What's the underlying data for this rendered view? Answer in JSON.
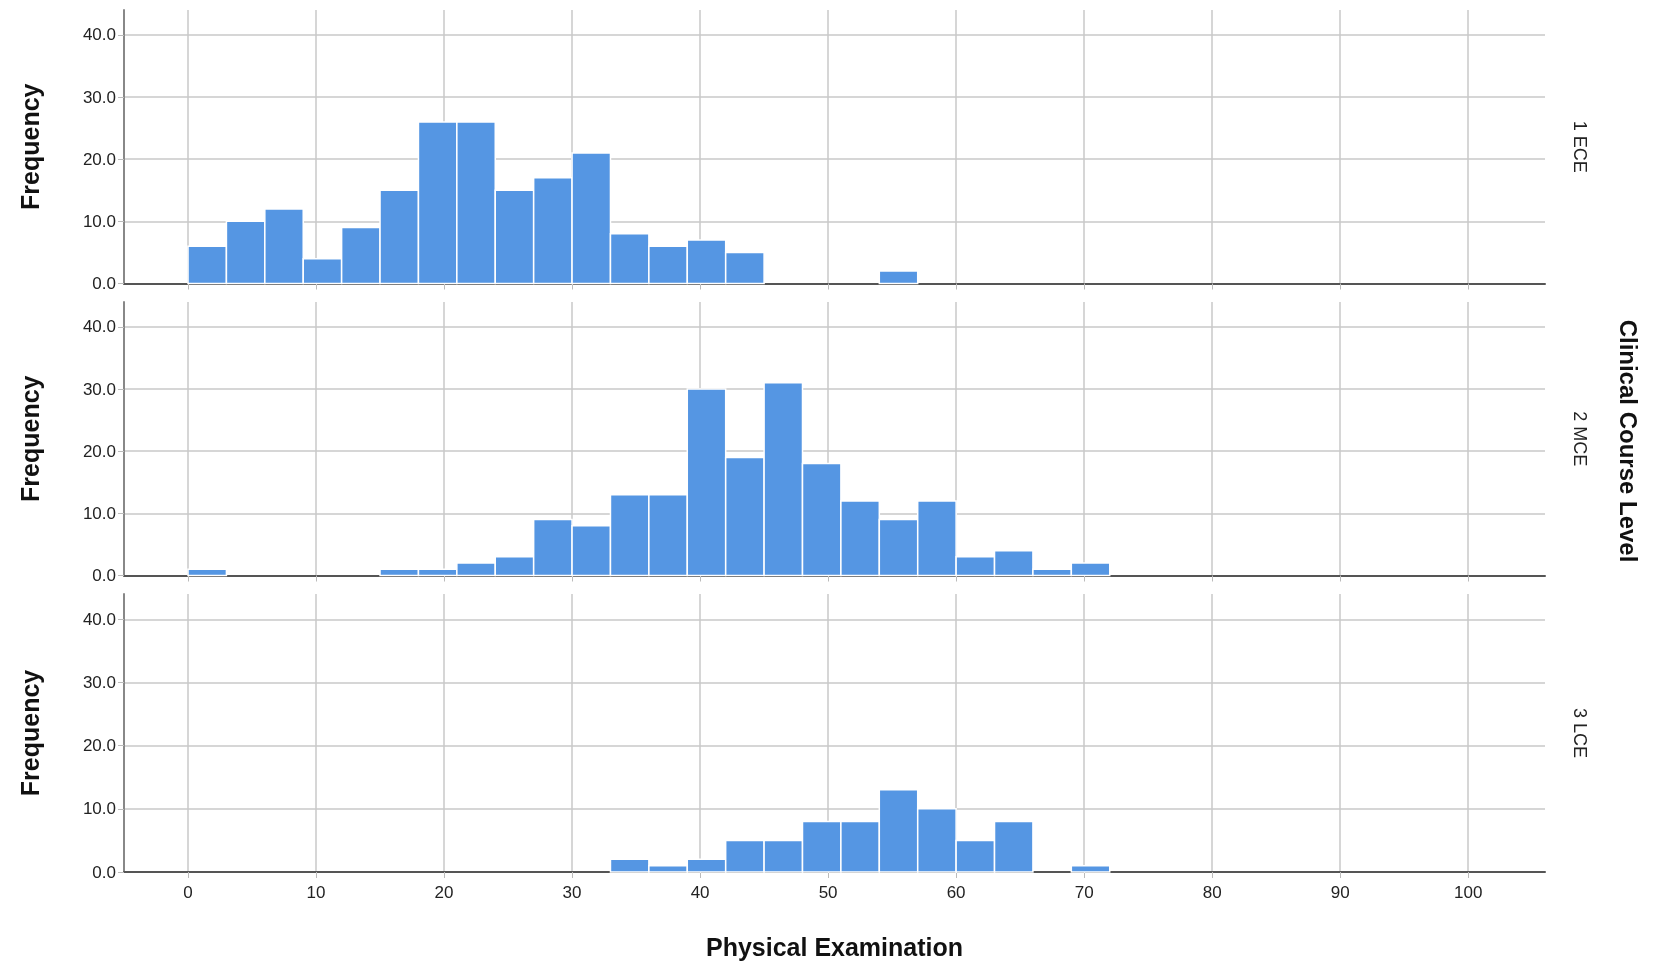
{
  "chart_data": [
    {
      "type": "histogram",
      "y2label": "1 ECE",
      "ylabel": "Frequency",
      "color": "#5596e3",
      "bins": [
        0,
        3,
        6,
        9,
        12,
        15,
        18,
        21,
        24,
        27,
        30,
        33,
        36,
        39,
        42,
        45,
        48,
        51,
        54,
        57,
        60,
        63,
        66,
        69,
        72
      ],
      "values": [
        6,
        10,
        12,
        4,
        9,
        15,
        26,
        26,
        15,
        17,
        21,
        8,
        6,
        7,
        5,
        0,
        0,
        0,
        2,
        0,
        0,
        0,
        0,
        0
      ],
      "xlim": [
        -5,
        106
      ],
      "xticks": [
        0,
        10,
        20,
        30,
        40,
        50,
        60,
        70,
        80,
        90,
        100
      ],
      "ylim": [
        0,
        44
      ],
      "yticks": [
        {
          "value": 0,
          "label": "0.0"
        },
        {
          "value": 10,
          "label": "10.0"
        },
        {
          "value": 20,
          "label": "20.0"
        },
        {
          "value": 30,
          "label": "30.0"
        },
        {
          "value": 40,
          "label": "40.0"
        }
      ],
      "grid": true,
      "tick_labels": "y"
    },
    {
      "type": "histogram",
      "y2label": "2 MCE",
      "ylabel": "Frequency",
      "color": "#5596e3",
      "bins": [
        0,
        3,
        6,
        9,
        12,
        15,
        18,
        21,
        24,
        27,
        30,
        33,
        36,
        39,
        42,
        45,
        48,
        51,
        54,
        57,
        60,
        63,
        66,
        69,
        72
      ],
      "values": [
        1,
        0,
        0,
        0,
        0,
        1,
        1,
        2,
        3,
        9,
        8,
        13,
        13,
        30,
        19,
        31,
        18,
        12,
        9,
        12,
        3,
        4,
        1,
        2
      ],
      "xlim": [
        -5,
        106
      ],
      "xticks": [
        0,
        10,
        20,
        30,
        40,
        50,
        60,
        70,
        80,
        90,
        100
      ],
      "ylim": [
        0,
        44
      ],
      "yticks": [
        {
          "value": 0,
          "label": "0.0"
        },
        {
          "value": 10,
          "label": "10.0"
        },
        {
          "value": 20,
          "label": "20.0"
        },
        {
          "value": 30,
          "label": "30.0"
        },
        {
          "value": 40,
          "label": "40.0"
        }
      ],
      "grid": true,
      "tick_labels": "y",
      "annotations": [
        "Clinical Course Level"
      ]
    },
    {
      "type": "histogram",
      "y2label": "3 LCE",
      "ylabel": "Frequency",
      "xlabel": "Physical Examination",
      "color": "#5596e3",
      "bins": [
        0,
        3,
        6,
        9,
        12,
        15,
        18,
        21,
        24,
        27,
        30,
        33,
        36,
        39,
        42,
        45,
        48,
        51,
        54,
        57,
        60,
        63,
        66,
        69,
        72
      ],
      "values": [
        0,
        0,
        0,
        0,
        0,
        0,
        0,
        0,
        0,
        0,
        0,
        2,
        1,
        2,
        5,
        5,
        8,
        8,
        13,
        10,
        5,
        8,
        0,
        1
      ],
      "xlim": [
        -5,
        106
      ],
      "xticks": [
        0,
        10,
        20,
        30,
        40,
        50,
        60,
        70,
        80,
        90,
        100
      ],
      "ylim": [
        0,
        44
      ],
      "yticks": [
        {
          "value": 0,
          "label": "0.0"
        },
        {
          "value": 10,
          "label": "10.0"
        },
        {
          "value": 20,
          "label": "20.0"
        },
        {
          "value": 30,
          "label": "30.0"
        },
        {
          "value": 40,
          "label": "40.0"
        }
      ],
      "grid": true
    }
  ]
}
